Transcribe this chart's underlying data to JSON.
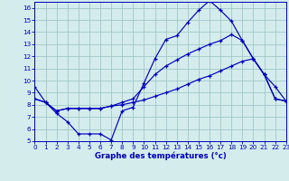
{
  "title": "Graphe des températures (°c)",
  "bg_color": "#d4ecec",
  "grid_color": "#a0c8c8",
  "line_color": "#0000bb",
  "xlim": [
    0,
    23
  ],
  "ylim": [
    5,
    16.5
  ],
  "xticks": [
    0,
    1,
    2,
    3,
    4,
    5,
    6,
    7,
    8,
    9,
    10,
    11,
    12,
    13,
    14,
    15,
    16,
    17,
    18,
    19,
    20,
    21,
    22,
    23
  ],
  "yticks": [
    5,
    6,
    7,
    8,
    9,
    10,
    11,
    12,
    13,
    14,
    15,
    16
  ],
  "line1_x": [
    0,
    1,
    2,
    3,
    4,
    5,
    6,
    7,
    8,
    9,
    10,
    11,
    12,
    13,
    14,
    15,
    16,
    17,
    18,
    19,
    20,
    21,
    22,
    23
  ],
  "line1_y": [
    9.5,
    8.2,
    7.3,
    6.6,
    5.6,
    5.6,
    5.6,
    5.1,
    7.5,
    7.8,
    9.8,
    11.8,
    13.4,
    13.7,
    14.8,
    15.8,
    16.6,
    15.8,
    14.9,
    13.3,
    11.8,
    10.5,
    9.5,
    8.3
  ],
  "line2_x": [
    0,
    1,
    2,
    3,
    4,
    5,
    6,
    7,
    8,
    9,
    10,
    11,
    12,
    13,
    14,
    15,
    16,
    17,
    18,
    19,
    20,
    21,
    22,
    23
  ],
  "line2_y": [
    8.5,
    8.2,
    7.5,
    7.7,
    7.7,
    7.7,
    7.7,
    7.9,
    8.2,
    8.5,
    9.5,
    10.5,
    11.2,
    11.7,
    12.2,
    12.6,
    13.0,
    13.3,
    13.8,
    13.3,
    11.8,
    10.5,
    8.5,
    8.3
  ],
  "line3_x": [
    0,
    1,
    2,
    3,
    4,
    5,
    6,
    7,
    8,
    9,
    10,
    11,
    12,
    13,
    14,
    15,
    16,
    17,
    18,
    19,
    20,
    21,
    22,
    23
  ],
  "line3_y": [
    8.5,
    8.2,
    7.5,
    7.7,
    7.7,
    7.7,
    7.7,
    7.9,
    8.0,
    8.2,
    8.4,
    8.7,
    9.0,
    9.3,
    9.7,
    10.1,
    10.4,
    10.8,
    11.2,
    11.6,
    11.8,
    10.5,
    8.5,
    8.3
  ]
}
